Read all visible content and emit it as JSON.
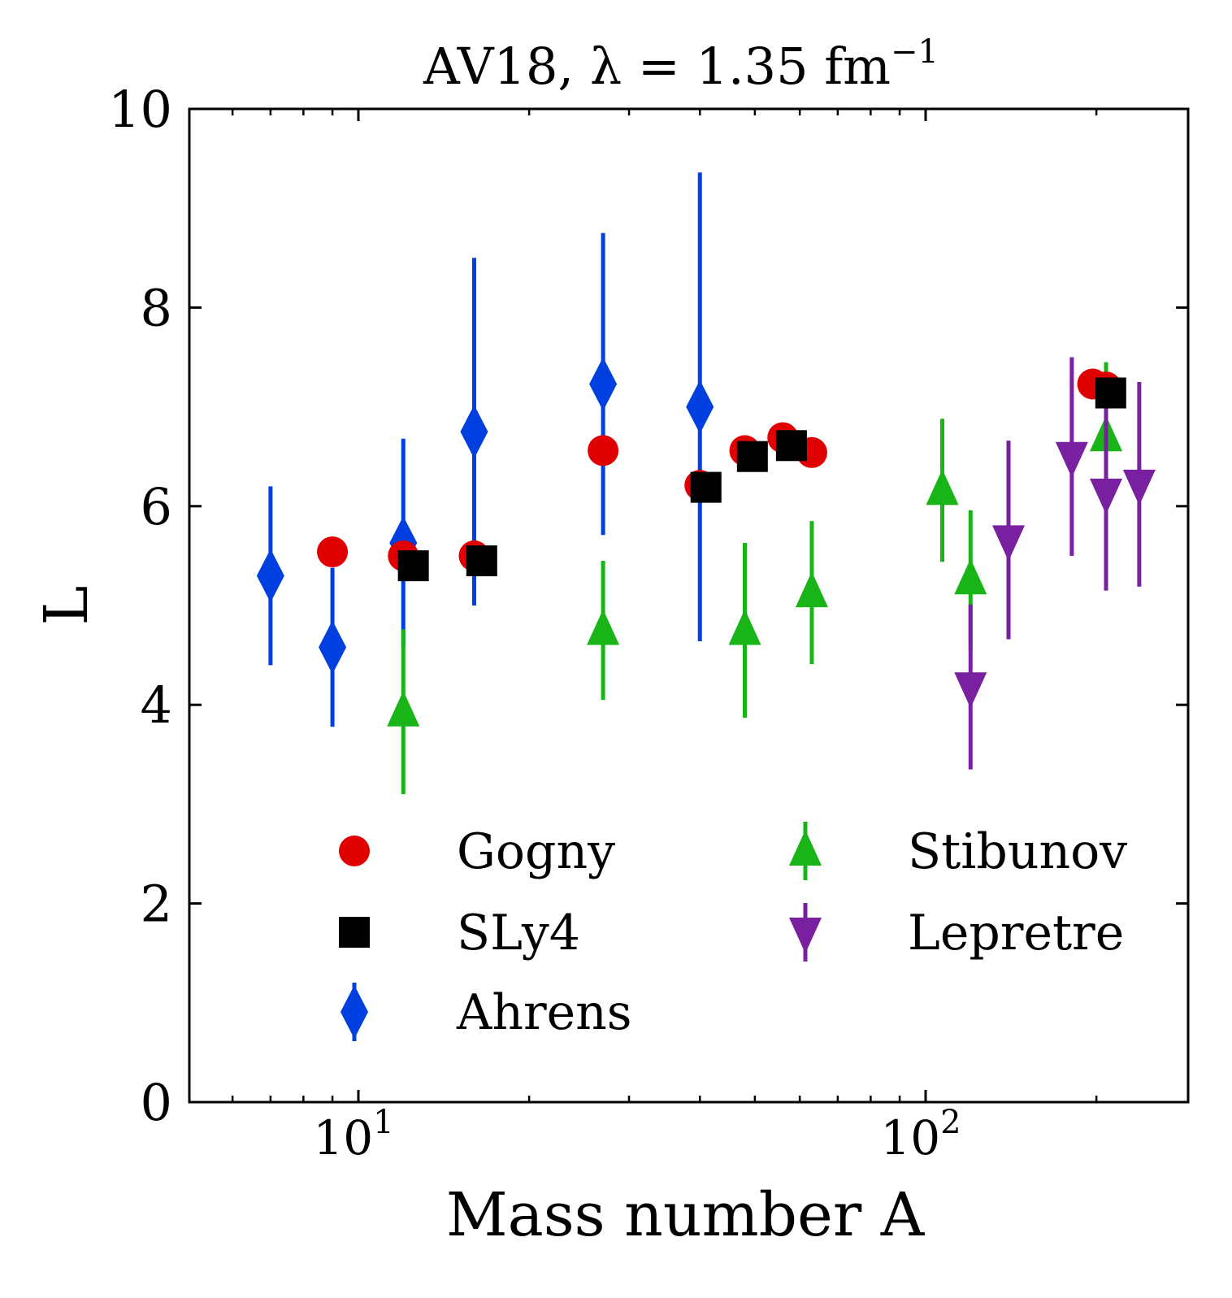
{
  "chart_data": {
    "type": "scatter",
    "title": "AV18, λ = 1.35 fm⁻¹",
    "title_main": "AV18, λ = 1.35 fm",
    "title_sup": "−1",
    "xlabel": "Mass number A",
    "ylabel": "L",
    "xscale": "log",
    "xlim": [
      6,
      300
    ],
    "ylim": [
      0,
      10
    ],
    "yticks": [
      0,
      2,
      4,
      6,
      8,
      10
    ],
    "xticks_major": [
      {
        "value": 10,
        "base": "10",
        "exp": "1"
      },
      {
        "value": 100,
        "base": "10",
        "exp": "2"
      }
    ],
    "xticks_minor": [
      6,
      7,
      8,
      9,
      20,
      30,
      40,
      50,
      60,
      70,
      80,
      90,
      200,
      300
    ],
    "grid": false,
    "legend_position": "lower-right",
    "series": [
      {
        "name": "Gogny",
        "marker": "circle",
        "color": "#e00000",
        "points": [
          {
            "x": 9,
            "y": 5.54
          },
          {
            "x": 12,
            "y": 5.5
          },
          {
            "x": 16,
            "y": 5.5
          },
          {
            "x": 27,
            "y": 6.56
          },
          {
            "x": 40,
            "y": 6.21
          },
          {
            "x": 48,
            "y": 6.56
          },
          {
            "x": 56,
            "y": 6.69
          },
          {
            "x": 63,
            "y": 6.54
          },
          {
            "x": 197,
            "y": 7.23
          },
          {
            "x": 208,
            "y": 7.2
          }
        ]
      },
      {
        "name": "SLy4",
        "marker": "square",
        "color": "#000000",
        "points": [
          {
            "x": 12.5,
            "y": 5.4
          },
          {
            "x": 16.5,
            "y": 5.45
          },
          {
            "x": 41,
            "y": 6.19
          },
          {
            "x": 49.5,
            "y": 6.5
          },
          {
            "x": 58,
            "y": 6.61
          },
          {
            "x": 212,
            "y": 7.14
          }
        ]
      },
      {
        "name": "Ahrens",
        "marker": "diamond",
        "color": "#0040e0",
        "points": [
          {
            "x": 7,
            "y": 5.3,
            "err": 0.9
          },
          {
            "x": 9,
            "y": 4.58,
            "err": 0.8
          },
          {
            "x": 12,
            "y": 5.63,
            "err": 1.05
          },
          {
            "x": 16,
            "y": 6.75,
            "err": 1.75
          },
          {
            "x": 27,
            "y": 7.23,
            "err": 1.52
          },
          {
            "x": 40,
            "y": 7.0,
            "err": 2.36
          }
        ]
      },
      {
        "name": "Stibunov",
        "marker": "triangle-up",
        "color": "#18b418",
        "points": [
          {
            "x": 12,
            "y": 3.93,
            "err": 0.83
          },
          {
            "x": 27,
            "y": 4.75,
            "err": 0.7
          },
          {
            "x": 48,
            "y": 4.75,
            "err": 0.88
          },
          {
            "x": 63,
            "y": 5.13,
            "err": 0.72
          },
          {
            "x": 107,
            "y": 6.16,
            "err": 0.72
          },
          {
            "x": 120,
            "y": 5.26,
            "err": 0.7
          },
          {
            "x": 208,
            "y": 6.7,
            "err": 0.75
          }
        ]
      },
      {
        "name": "Lepretre",
        "marker": "triangle-down",
        "color": "#7820a0",
        "points": [
          {
            "x": 120,
            "y": 4.18,
            "err": 0.83
          },
          {
            "x": 140,
            "y": 5.66,
            "err": 1.0
          },
          {
            "x": 181,
            "y": 6.5,
            "err": 1.0
          },
          {
            "x": 208,
            "y": 6.13,
            "err": 0.98
          },
          {
            "x": 238,
            "y": 6.22,
            "err": 1.03
          }
        ]
      }
    ]
  }
}
